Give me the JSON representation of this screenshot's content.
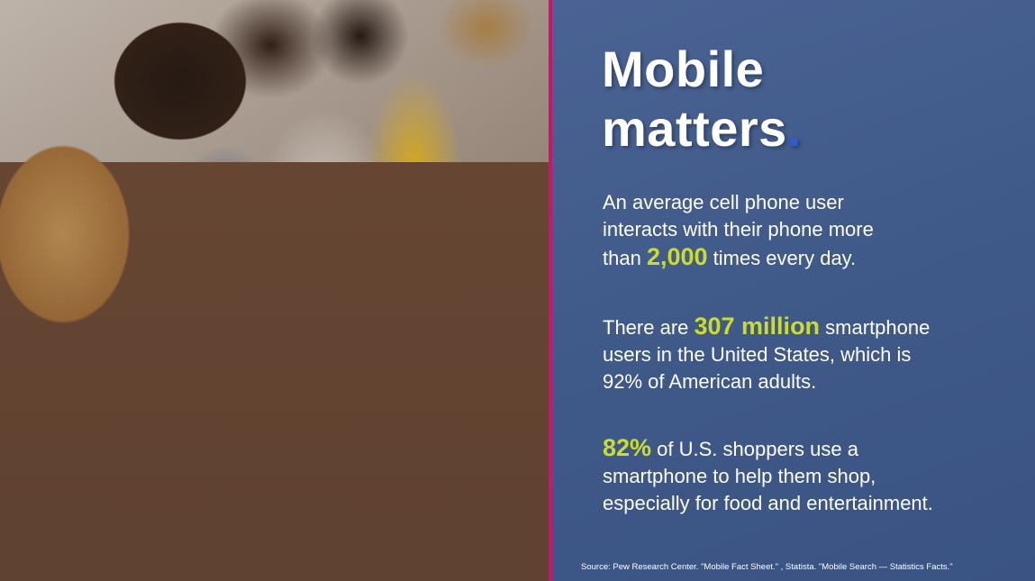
{
  "slide": {
    "title_line1": "Mobile",
    "title_line2": "matters",
    "title_dot": ".",
    "colors": {
      "highlight": "#cddc2b",
      "divider": "#d1116f",
      "panel": "#3f5988",
      "dot": "#2f5bd8"
    },
    "stats": [
      {
        "line1": "An average cell phone user",
        "line2": "interacts with their phone more",
        "pre": "than ",
        "highlight": "2,000",
        "post": " times every day."
      },
      {
        "pre": "There are ",
        "highlight": "307 million",
        "post": " smartphone",
        "line2": "users in the United States, which is",
        "line3": "92% of American adults."
      },
      {
        "highlight": "82%",
        "post": " of U.S. shoppers use a",
        "line2": "smartphone to help them shop,",
        "line3": "especially for food and entertainment."
      }
    ],
    "source": "Source: Pew Research Center. \"Mobile Fact Sheet.\" , Statista. \"Mobile Search — Statistics Facts.\""
  }
}
